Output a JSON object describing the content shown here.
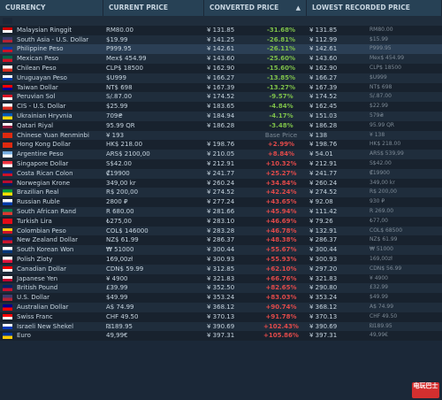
{
  "header": {
    "currency": "CURRENCY",
    "current_price": "CURRENT PRICE",
    "converted_price": "CONVERTED PRICE",
    "sort_icon": "▲",
    "lowest_price": "LOWEST RECORDED PRICE"
  },
  "rows": [
    {
      "currency": "",
      "current": "",
      "converted": "",
      "pct": "",
      "pct_type": "neg",
      "low": "",
      "low_raw": "",
      "flag": [
        "#1b2838",
        "#1b2838"
      ]
    },
    {
      "currency": "Malaysian Ringgit",
      "current": "RM80.00",
      "converted": "¥ 131.85",
      "pct": "-31.68%",
      "pct_type": "neg",
      "low": "¥ 131.85",
      "low_raw": "RM80.00",
      "flag": [
        "#cc0001",
        "#ffffff"
      ]
    },
    {
      "currency": "South Asia - U.S. Dollar",
      "current": "$19.99",
      "converted": "¥ 141.25",
      "pct": "-26.81%",
      "pct_type": "neg",
      "low": "¥ 112.99",
      "low_raw": "$15.99",
      "flag": [
        "#3c3b6e",
        "#b22234"
      ]
    },
    {
      "currency": "Philippine Peso",
      "current": "P999.95",
      "converted": "¥ 142.61",
      "pct": "-26.11%",
      "pct_type": "neg",
      "low": "¥ 142.61",
      "low_raw": "P999.95",
      "flag": [
        "#0038a8",
        "#ce1126"
      ],
      "hl": true
    },
    {
      "currency": "Mexican Peso",
      "current": "Mex$ 454.99",
      "converted": "¥ 143.60",
      "pct": "-25.60%",
      "pct_type": "neg",
      "low": "¥ 143.60",
      "low_raw": "Mex$ 454.99",
      "flag": [
        "#006847",
        "#ce1126"
      ]
    },
    {
      "currency": "Chilean Peso",
      "current": "CLP$ 18500",
      "converted": "¥ 162.90",
      "pct": "-15.60%",
      "pct_type": "neg",
      "low": "¥ 162.90",
      "low_raw": "CLP$ 18500",
      "flag": [
        "#ffffff",
        "#d52b1e"
      ]
    },
    {
      "currency": "Uruguayan Peso",
      "current": "$U999",
      "converted": "¥ 166.27",
      "pct": "-13.85%",
      "pct_type": "neg",
      "low": "¥ 166.27",
      "low_raw": "$U999",
      "flag": [
        "#ffffff",
        "#0038a8"
      ]
    },
    {
      "currency": "Taiwan Dollar",
      "current": "NT$ 698",
      "converted": "¥ 167.39",
      "pct": "-13.27%",
      "pct_type": "neg",
      "low": "¥ 167.39",
      "low_raw": "NT$ 698",
      "flag": [
        "#fe0000",
        "#000095"
      ]
    },
    {
      "currency": "Peruvian Sol",
      "current": "S/.87.00",
      "converted": "¥ 174.52",
      "pct": "-9.57%",
      "pct_type": "neg",
      "low": "¥ 174.52",
      "low_raw": "S/.87.00",
      "flag": [
        "#d91023",
        "#ffffff"
      ]
    },
    {
      "currency": "CIS - U.S. Dollar",
      "current": "$25.99",
      "converted": "¥ 183.65",
      "pct": "-4.84%",
      "pct_type": "neg",
      "low": "¥ 162.45",
      "low_raw": "$22.99",
      "flag": [
        "#ffffff",
        "#d52b1e"
      ]
    },
    {
      "currency": "Ukrainian Hryvnia",
      "current": "709₴",
      "converted": "¥ 184.94",
      "pct": "-4.17%",
      "pct_type": "neg",
      "low": "¥ 151.03",
      "low_raw": "579₴",
      "flag": [
        "#0057b7",
        "#ffd700"
      ]
    },
    {
      "currency": "Qatari Riyal",
      "current": "95.99 QR",
      "converted": "¥ 186.28",
      "pct": "-3.48%",
      "pct_type": "neg",
      "low": "¥ 186.28",
      "low_raw": "95.99 QR",
      "flag": [
        "#ffffff",
        "#8d1b3d"
      ]
    },
    {
      "currency": "Chinese Yuan Renminbi",
      "current": "¥ 193",
      "converted": "",
      "pct": "Base Price",
      "pct_type": "base",
      "low": "¥ 138",
      "low_raw": "¥ 138",
      "flag": [
        "#de2910",
        "#de2910"
      ]
    },
    {
      "currency": "Hong Kong Dollar",
      "current": "HK$ 218.00",
      "converted": "¥ 198.76",
      "pct": "+2.99%",
      "pct_type": "pos",
      "low": "¥ 198.76",
      "low_raw": "HK$ 218.00",
      "flag": [
        "#de2910",
        "#de2910"
      ]
    },
    {
      "currency": "Argentine Peso",
      "current": "ARS$ 2100,00",
      "converted": "¥ 210.05",
      "pct": "+8.84%",
      "pct_type": "pos",
      "low": "¥ 54.01",
      "low_raw": "ARS$ 539,99",
      "flag": [
        "#74acdf",
        "#ffffff"
      ]
    },
    {
      "currency": "Singapore Dollar",
      "current": "S$42.00",
      "converted": "¥ 212.91",
      "pct": "+10.32%",
      "pct_type": "pos",
      "low": "¥ 212.91",
      "low_raw": "S$42.00",
      "flag": [
        "#ef3340",
        "#ffffff"
      ]
    },
    {
      "currency": "Costa Rican Colon",
      "current": "₡19900",
      "converted": "¥ 241.77",
      "pct": "+25.27%",
      "pct_type": "pos",
      "low": "¥ 241.77",
      "low_raw": "₡19900",
      "flag": [
        "#002b7f",
        "#ce1126"
      ]
    },
    {
      "currency": "Norwegian Krone",
      "current": "349,00 kr",
      "converted": "¥ 260.24",
      "pct": "+34.84%",
      "pct_type": "pos",
      "low": "¥ 260.24",
      "low_raw": "349,00 kr",
      "flag": [
        "#ba0c2f",
        "#00205b"
      ]
    },
    {
      "currency": "Brazilian Real",
      "current": "R$ 200,00",
      "converted": "¥ 274.52",
      "pct": "+42.24%",
      "pct_type": "pos",
      "low": "¥ 274.52",
      "low_raw": "R$ 200,00",
      "flag": [
        "#009c3b",
        "#ffdf00"
      ]
    },
    {
      "currency": "Russian Ruble",
      "current": "2800 ₽",
      "converted": "¥ 277.24",
      "pct": "+43.65%",
      "pct_type": "pos",
      "low": "¥ 92.08",
      "low_raw": "930 ₽",
      "flag": [
        "#ffffff",
        "#0039a6"
      ]
    },
    {
      "currency": "South African Rand",
      "current": "R 680.00",
      "converted": "¥ 281.66",
      "pct": "+45.94%",
      "pct_type": "pos",
      "low": "¥ 111.42",
      "low_raw": "R 269.00",
      "flag": [
        "#007a4d",
        "#de3831"
      ]
    },
    {
      "currency": "Turkish Lira",
      "current": "₺275,00",
      "converted": "¥ 283.10",
      "pct": "+46.69%",
      "pct_type": "pos",
      "low": "¥ 79.26",
      "low_raw": "₺77,00",
      "flag": [
        "#e30a17",
        "#e30a17"
      ]
    },
    {
      "currency": "Colombian Peso",
      "current": "COL$ 146000",
      "converted": "¥ 283.28",
      "pct": "+46.78%",
      "pct_type": "pos",
      "low": "¥ 132.91",
      "low_raw": "COL$ 68500",
      "flag": [
        "#fcd116",
        "#ce1126"
      ]
    },
    {
      "currency": "New Zealand Dollar",
      "current": "NZ$ 61.99",
      "converted": "¥ 286.37",
      "pct": "+48.38%",
      "pct_type": "pos",
      "low": "¥ 286.37",
      "low_raw": "NZ$ 61.99",
      "flag": [
        "#00247d",
        "#cc142b"
      ]
    },
    {
      "currency": "South Korean Won",
      "current": "₩ 51000",
      "converted": "¥ 300.44",
      "pct": "+55.67%",
      "pct_type": "pos",
      "low": "¥ 300.44",
      "low_raw": "₩ 51000",
      "flag": [
        "#ffffff",
        "#003478"
      ]
    },
    {
      "currency": "Polish Zloty",
      "current": "169,00zł",
      "converted": "¥ 300.93",
      "pct": "+55.93%",
      "pct_type": "pos",
      "low": "¥ 300.93",
      "low_raw": "169,00zł",
      "flag": [
        "#ffffff",
        "#dc143c"
      ]
    },
    {
      "currency": "Canadian Dollar",
      "current": "CDN$ 59.99",
      "converted": "¥ 312.85",
      "pct": "+62.10%",
      "pct_type": "pos",
      "low": "¥ 297.20",
      "low_raw": "CDN$ 56.99",
      "flag": [
        "#ff0000",
        "#ffffff"
      ]
    },
    {
      "currency": "Japanese Yen",
      "current": "¥ 4900",
      "converted": "¥ 321.83",
      "pct": "+66.76%",
      "pct_type": "pos",
      "low": "¥ 321.83",
      "low_raw": "¥ 4900",
      "flag": [
        "#ffffff",
        "#bc002d"
      ]
    },
    {
      "currency": "British Pound",
      "current": "£39.99",
      "converted": "¥ 352.50",
      "pct": "+82.65%",
      "pct_type": "pos",
      "low": "¥ 290.80",
      "low_raw": "£32.99",
      "flag": [
        "#012169",
        "#c8102e"
      ]
    },
    {
      "currency": "U.S. Dollar",
      "current": "$49.99",
      "converted": "¥ 353.24",
      "pct": "+83.03%",
      "pct_type": "pos",
      "low": "¥ 353.24",
      "low_raw": "$49.99",
      "flag": [
        "#3c3b6e",
        "#b22234"
      ]
    },
    {
      "currency": "Australian Dollar",
      "current": "A$ 74.99",
      "converted": "¥ 368.12",
      "pct": "+90.74%",
      "pct_type": "pos",
      "low": "¥ 368.12",
      "low_raw": "A$ 74.99",
      "flag": [
        "#00008b",
        "#ff0000"
      ]
    },
    {
      "currency": "Swiss Franc",
      "current": "CHF 49.50",
      "converted": "¥ 370.13",
      "pct": "+91.78%",
      "pct_type": "pos",
      "low": "¥ 370.13",
      "low_raw": "CHF 49.50",
      "flag": [
        "#ff0000",
        "#ffffff"
      ]
    },
    {
      "currency": "Israeli New Shekel",
      "current": "₪189.95",
      "converted": "¥ 390.69",
      "pct": "+102.43%",
      "pct_type": "pos",
      "low": "¥ 390.69",
      "low_raw": "₪189.95",
      "flag": [
        "#ffffff",
        "#0038b8"
      ]
    },
    {
      "currency": "Euro",
      "current": "49,99€",
      "converted": "¥ 397.31",
      "pct": "+105.86%",
      "pct_type": "pos",
      "low": "¥ 397.31",
      "low_raw": "49,99€",
      "flag": [
        "#003399",
        "#ffcc00"
      ]
    }
  ],
  "watermark": "电玩巴士"
}
